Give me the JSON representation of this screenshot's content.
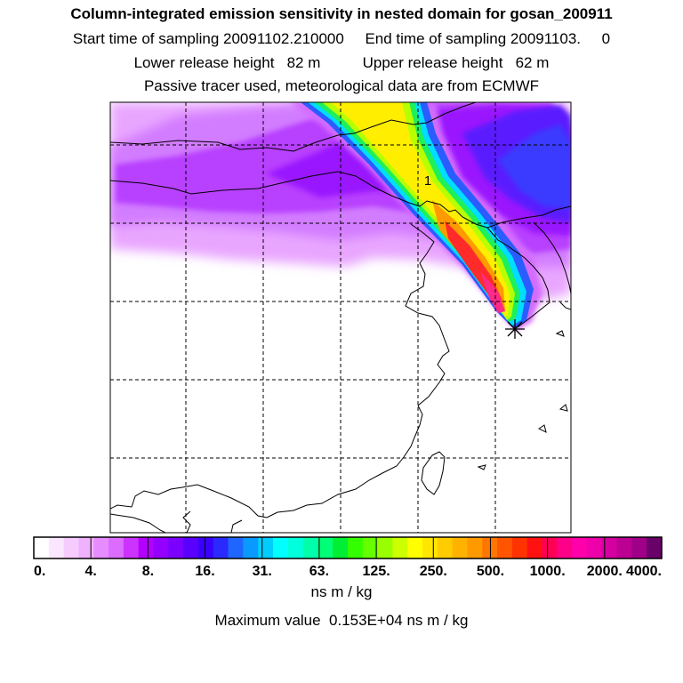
{
  "chart_data": {
    "type": "heatmap",
    "title": "Column-integrated emission sensitivity in nested domain for gosan_200911",
    "subtitle_lines": [
      "Start time of sampling 20091102.210000     End time of sampling 20091103.     0",
      "Lower release height   82 m          Upper release height   62 m",
      "Passive tracer used, meteorological data are from ECMWF"
    ],
    "map_label": "1",
    "release_marker": "asterisk",
    "colorbar": {
      "tick_labels": [
        "0.",
        "4.",
        "8.",
        "16.",
        "31.",
        "63.",
        "125.",
        "250.",
        "500.",
        "1000.",
        "2000.",
        "4000."
      ],
      "colors": [
        "#ffffff",
        "#fbe6ff",
        "#f6ccff",
        "#f0b2ff",
        "#e68cff",
        "#dc6cff",
        "#cc33ff",
        "#b300ff",
        "#9400ff",
        "#7a00ff",
        "#5a00ff",
        "#3a00ff",
        "#2a2aff",
        "#1e66ff",
        "#0a99ff",
        "#00ccff",
        "#00ffff",
        "#00ffdd",
        "#00ffaa",
        "#00ff77",
        "#00ee33",
        "#33ff00",
        "#66ff00",
        "#99ff00",
        "#ccff00",
        "#ffff00",
        "#ffe600",
        "#ffcc00",
        "#ffb300",
        "#ff9900",
        "#ff7700",
        "#ff5500",
        "#ff3300",
        "#ff1111",
        "#ff0055",
        "#ff0088",
        "#ff00aa",
        "#ee00aa",
        "#d4009f",
        "#bb0093",
        "#a00088",
        "#6a006a"
      ],
      "unit": "ns m / kg"
    },
    "max_value_text": "Maximum value  0.153E+04 ns m / kg"
  }
}
